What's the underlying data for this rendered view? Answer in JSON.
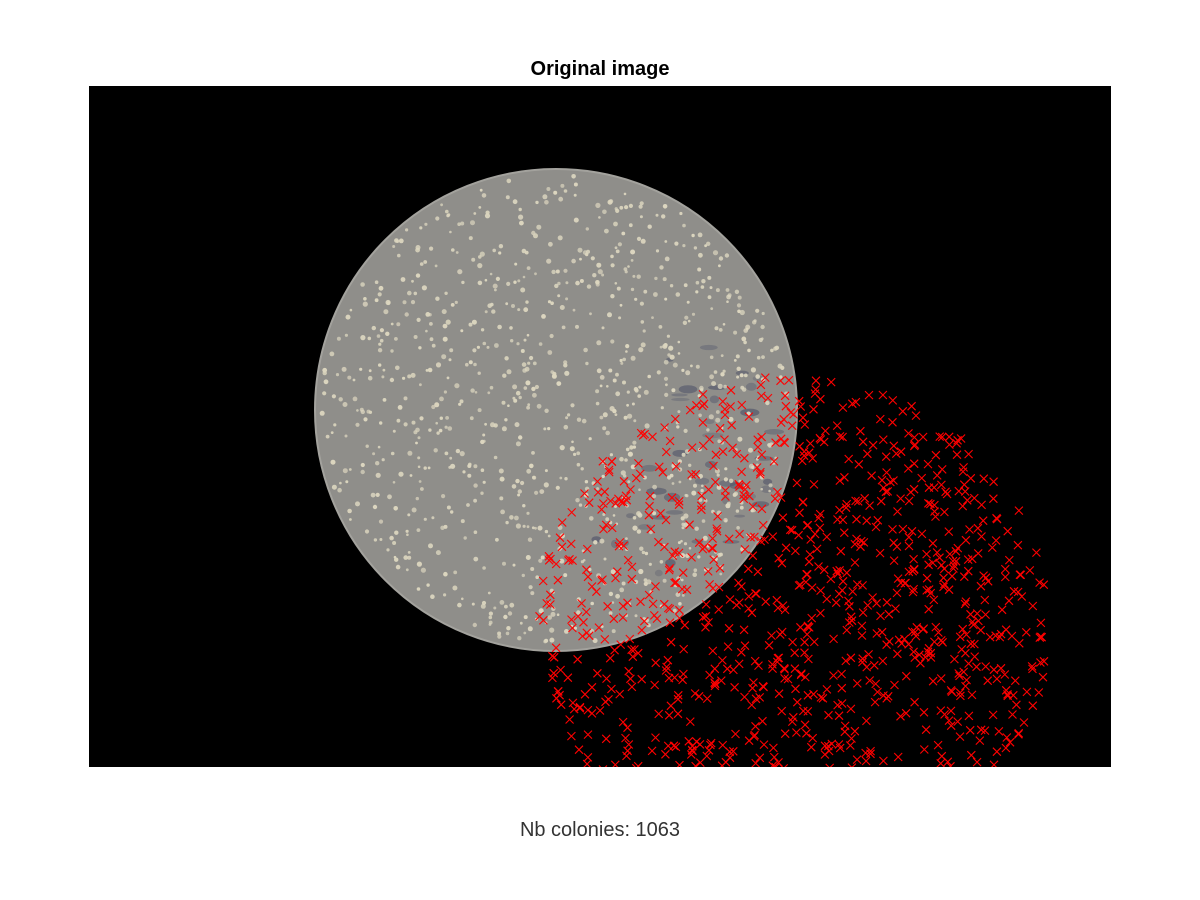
{
  "figure": {
    "title": "Original image",
    "caption": "Nb colonies: 1063"
  },
  "colors": {
    "background": "#000000",
    "plate": "#8f8e8a",
    "plate_edge": "#a3a29d",
    "colony": "#dcd6bf",
    "marker": "#ff0000",
    "smudge": "#4b4f66"
  },
  "image": {
    "content": "petri dish with bacterial colonies on black background",
    "marker_symbol": "x",
    "marker_count": 1063
  }
}
